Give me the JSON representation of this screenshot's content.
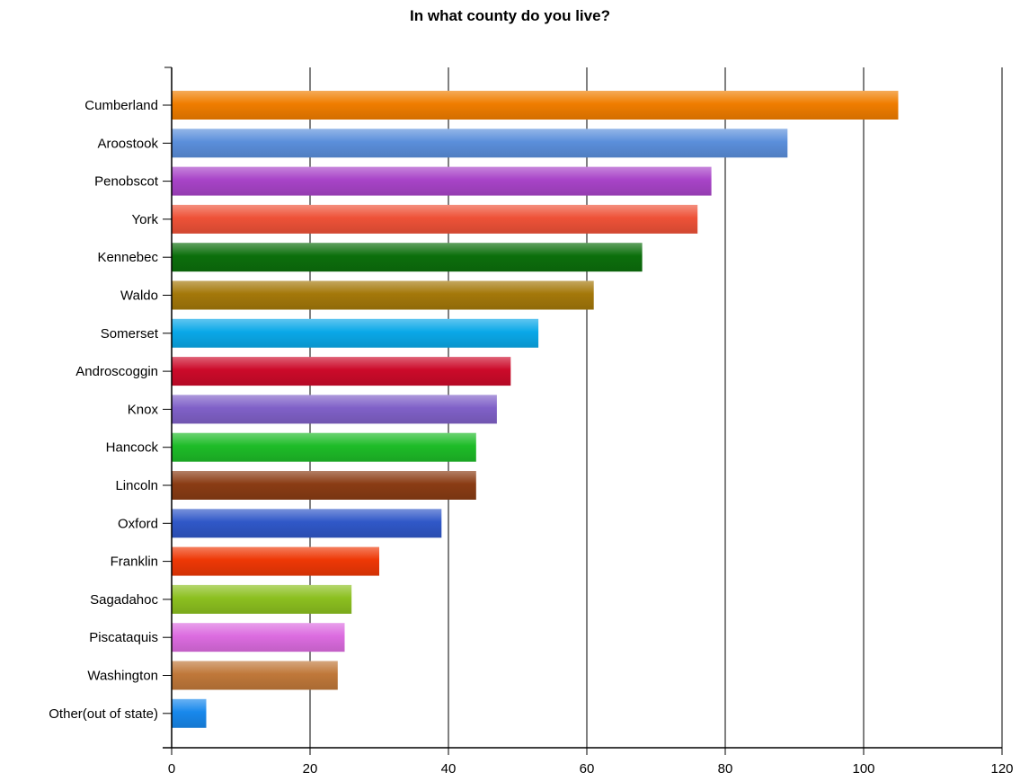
{
  "chart_data": {
    "type": "bar",
    "orientation": "horizontal",
    "title": "In what county do you live?",
    "xlabel": "",
    "ylabel": "",
    "xlim": [
      0,
      120
    ],
    "x_ticks": [
      0,
      20,
      40,
      60,
      80,
      100,
      120
    ],
    "grid": "vertical",
    "categories": [
      "Cumberland",
      "Aroostook",
      "Penobscot",
      "York",
      "Kennebec",
      "Waldo",
      "Somerset",
      "Androscoggin",
      "Knox",
      "Hancock",
      "Lincoln",
      "Oxford",
      "Franklin",
      "Sagadahoc",
      "Piscataquis",
      "Washington",
      "Other(out of state)"
    ],
    "values": [
      105,
      89,
      78,
      76,
      68,
      61,
      53,
      49,
      47,
      44,
      44,
      39,
      30,
      26,
      25,
      24,
      5
    ],
    "colors": [
      "#f07d00",
      "#5b8fdb",
      "#a844c8",
      "#ee5238",
      "#0c6f0c",
      "#a4780a",
      "#0aa8e8",
      "#cc0a2a",
      "#8061c8",
      "#1ebc28",
      "#8a3c14",
      "#3058c8",
      "#ee3806",
      "#8cc020",
      "#dc6ce0",
      "#c0783a",
      "#1888ec"
    ]
  }
}
